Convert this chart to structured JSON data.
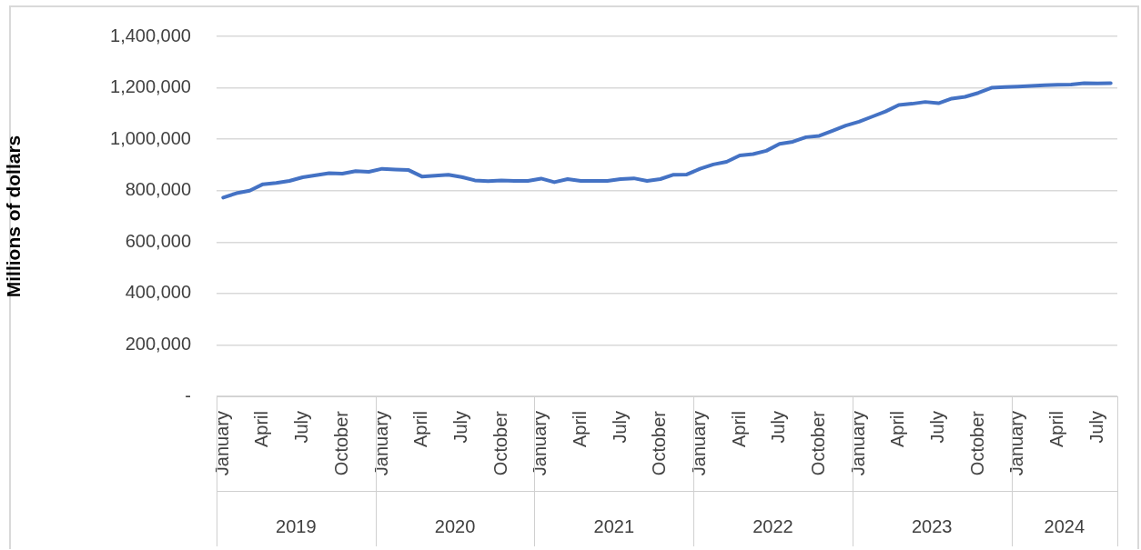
{
  "chart_data": {
    "type": "line",
    "ylabel": "Millions of dollars",
    "categories": [
      "January",
      null,
      null,
      "April",
      null,
      null,
      "July",
      null,
      null,
      "October",
      null,
      null,
      "January",
      null,
      null,
      "April",
      null,
      null,
      "July",
      null,
      null,
      "October",
      null,
      null,
      "January",
      null,
      null,
      "April",
      null,
      null,
      "July",
      null,
      null,
      "October",
      null,
      null,
      "January",
      null,
      null,
      "April",
      null,
      null,
      "July",
      null,
      null,
      "October",
      null,
      null,
      "January",
      null,
      null,
      "April",
      null,
      null,
      "July",
      null,
      null,
      "October",
      null,
      null,
      "January",
      null,
      null,
      "April",
      null,
      null,
      "July",
      null
    ],
    "annotations": [
      "2019",
      "2020",
      "2021",
      "2022",
      "2023",
      "2024"
    ],
    "series": [
      {
        "color": "#4472c4",
        "values": [
          773000,
          790000,
          800000,
          825000,
          830000,
          838000,
          852000,
          860000,
          868000,
          866000,
          876000,
          873000,
          885000,
          882000,
          880000,
          855000,
          858000,
          862000,
          853000,
          840000,
          837000,
          840000,
          838000,
          838000,
          847000,
          833000,
          845000,
          838000,
          838000,
          838000,
          845000,
          848000,
          838000,
          845000,
          862000,
          863000,
          885000,
          902000,
          912000,
          937000,
          942000,
          955000,
          982000,
          990000,
          1008000,
          1013000,
          1033000,
          1053000,
          1068000,
          1088000,
          1108000,
          1133000,
          1138000,
          1145000,
          1140000,
          1158000,
          1165000,
          1180000,
          1200000,
          1203000,
          1205000,
          1207000,
          1210000,
          1212000,
          1213000,
          1218000,
          1217000,
          1218000
        ]
      }
    ],
    "ylim": [
      0,
      1400000
    ],
    "yticks": [
      {
        "value": 0,
        "label": "-"
      },
      {
        "value": 200000,
        "label": "200,000"
      },
      {
        "value": 400000,
        "label": "400,000"
      },
      {
        "value": 600000,
        "label": "600,000"
      },
      {
        "value": 800000,
        "label": "800,000"
      },
      {
        "value": 1000000,
        "label": "1,000,000"
      },
      {
        "value": 1200000,
        "label": "1,200,000"
      },
      {
        "value": 1400000,
        "label": "1,400,000"
      }
    ],
    "grid": "y",
    "legend": false,
    "marker": "none",
    "line_style": "solid"
  }
}
